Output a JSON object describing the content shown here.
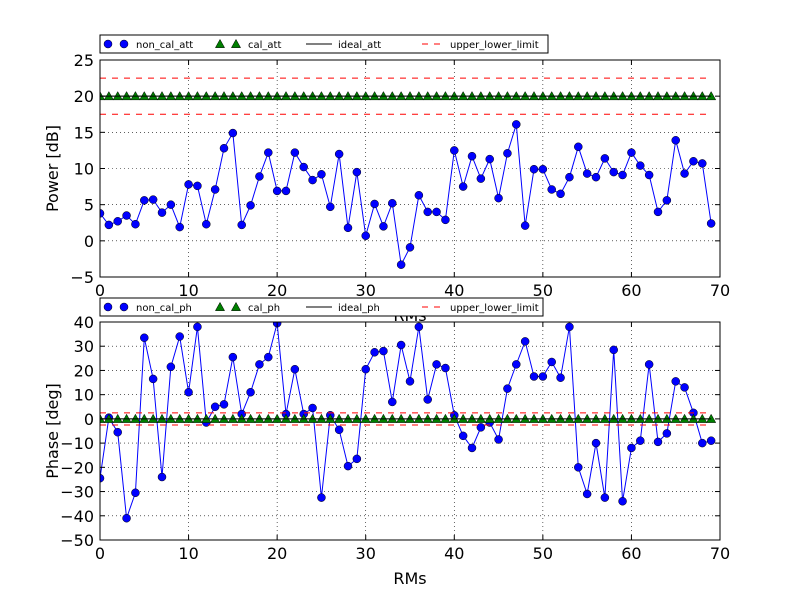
{
  "colors": {
    "non_cal": "#0000ff",
    "cal": "#007f00",
    "ideal": "#000000",
    "limit": "#ff0000"
  },
  "chart_data": [
    {
      "type": "line",
      "xlabel": "RMs",
      "ylabel": "Power [dB]",
      "xlim": [
        0,
        70
      ],
      "ylim": [
        -5,
        25
      ],
      "xticks": [
        0,
        10,
        20,
        30,
        40,
        50,
        60,
        70
      ],
      "yticks": [
        -5,
        0,
        5,
        10,
        15,
        20,
        25
      ],
      "grid": true,
      "legend_position": "above",
      "legend": [
        "non_cal_att",
        "cal_att",
        "ideal_att",
        "upper_lower_limit"
      ],
      "series": [
        {
          "name": "non_cal_att",
          "marker": "circle",
          "x": [
            0,
            1,
            2,
            3,
            4,
            5,
            6,
            7,
            8,
            9,
            10,
            11,
            12,
            13,
            14,
            15,
            16,
            17,
            18,
            19,
            20,
            21,
            22,
            23,
            24,
            25,
            26,
            27,
            28,
            29,
            30,
            31,
            32,
            33,
            34,
            35,
            36,
            37,
            38,
            39,
            40,
            41,
            42,
            43,
            44,
            45,
            46,
            47,
            48,
            49,
            50,
            51,
            52,
            53,
            54,
            55,
            56,
            57,
            58,
            59,
            60,
            61,
            62,
            63,
            64,
            65,
            66,
            67,
            68,
            69
          ],
          "values": [
            3.8,
            2.2,
            2.7,
            3.5,
            2.3,
            5.6,
            5.7,
            3.9,
            5.0,
            1.9,
            7.8,
            7.6,
            2.3,
            7.1,
            12.8,
            14.9,
            2.2,
            4.9,
            8.9,
            12.2,
            6.9,
            6.9,
            12.2,
            10.2,
            8.4,
            9.2,
            4.7,
            12.0,
            1.8,
            9.5,
            0.7,
            5.1,
            2.0,
            5.2,
            -3.3,
            -0.9,
            6.3,
            4.0,
            4.0,
            2.9,
            12.5,
            7.5,
            11.7,
            8.6,
            11.3,
            5.9,
            12.1,
            16.1,
            2.1,
            9.9,
            9.9,
            7.1,
            6.5,
            8.8,
            13.0,
            9.3,
            8.8,
            11.4,
            9.5,
            9.1,
            12.2,
            10.4,
            9.1,
            4.0,
            5.6,
            13.9,
            9.3,
            11.0,
            10.7,
            2.4
          ]
        },
        {
          "name": "cal_att",
          "marker": "triangle",
          "x": [
            0,
            1,
            2,
            3,
            4,
            5,
            6,
            7,
            8,
            9,
            10,
            11,
            12,
            13,
            14,
            15,
            16,
            17,
            18,
            19,
            20,
            21,
            22,
            23,
            24,
            25,
            26,
            27,
            28,
            29,
            30,
            31,
            32,
            33,
            34,
            35,
            36,
            37,
            38,
            39,
            40,
            41,
            42,
            43,
            44,
            45,
            46,
            47,
            48,
            49,
            50,
            51,
            52,
            53,
            54,
            55,
            56,
            57,
            58,
            59,
            60,
            61,
            62,
            63,
            64,
            65,
            66,
            67,
            68,
            69
          ],
          "values": [
            20,
            20,
            20,
            20,
            20,
            20,
            20,
            20,
            20,
            20,
            20,
            20,
            20,
            20,
            20,
            20,
            20,
            20,
            20,
            20,
            20,
            20,
            20,
            20,
            20,
            20,
            20,
            20,
            20,
            20,
            20,
            20,
            20,
            20,
            20,
            20,
            20,
            20,
            20,
            20,
            20,
            20,
            20,
            20,
            20,
            20,
            20,
            20,
            20,
            20,
            20,
            20,
            20,
            20,
            20,
            20,
            20,
            20,
            20,
            20,
            20,
            20,
            20,
            20,
            20,
            20,
            20,
            20,
            20,
            20
          ]
        },
        {
          "name": "ideal_att",
          "style": "solid",
          "x": [
            0,
            69
          ],
          "values": [
            20,
            20
          ]
        },
        {
          "name": "upper_lower_limit",
          "style": "dashed",
          "x": [
            0,
            69
          ],
          "values": [
            22.5,
            22.5
          ]
        },
        {
          "name": "upper_lower_limit",
          "style": "dashed",
          "x": [
            0,
            69
          ],
          "values": [
            17.5,
            17.5
          ]
        }
      ]
    },
    {
      "type": "line",
      "xlabel": "RMs",
      "ylabel": "Phase [deg]",
      "xlim": [
        0,
        70
      ],
      "ylim": [
        -50,
        40
      ],
      "xticks": [
        0,
        10,
        20,
        30,
        40,
        50,
        60,
        70
      ],
      "yticks": [
        -50,
        -40,
        -30,
        -20,
        -10,
        0,
        10,
        20,
        30,
        40
      ],
      "grid": true,
      "legend_position": "above",
      "legend": [
        "non_cal_ph",
        "cal_ph",
        "ideal_ph",
        "upper_lower_limit"
      ],
      "series": [
        {
          "name": "non_cal_ph",
          "marker": "circle",
          "x": [
            0,
            1,
            2,
            3,
            4,
            5,
            6,
            7,
            8,
            9,
            10,
            11,
            12,
            13,
            14,
            15,
            16,
            17,
            18,
            19,
            20,
            21,
            22,
            23,
            24,
            25,
            26,
            27,
            28,
            29,
            30,
            31,
            32,
            33,
            34,
            35,
            36,
            37,
            38,
            39,
            40,
            41,
            42,
            43,
            44,
            45,
            46,
            47,
            48,
            49,
            50,
            51,
            52,
            53,
            54,
            55,
            56,
            57,
            58,
            59,
            60,
            61,
            62,
            63,
            64,
            65,
            66,
            67,
            68,
            69
          ],
          "values": [
            -24.5,
            0.5,
            -5.5,
            -41,
            -30.5,
            33.5,
            16.5,
            -24,
            21.5,
            34,
            11,
            38,
            -1.5,
            5,
            6,
            25.5,
            2,
            11,
            22.5,
            25.5,
            39.5,
            2,
            20.5,
            2,
            4.5,
            -32.5,
            1.5,
            -4.5,
            -19.5,
            -16.5,
            20.5,
            27.5,
            28,
            7,
            30.5,
            15.5,
            38,
            8,
            22.5,
            21,
            1.5,
            -7,
            -12,
            -3.5,
            -1.5,
            -8.5,
            12.5,
            22.5,
            32,
            17.5,
            17.5,
            23.5,
            17,
            38,
            -20,
            -31,
            -10,
            -32.5,
            28.5,
            -34,
            -12,
            -9,
            22.5,
            -9.5,
            -6,
            15.5,
            13,
            2.5,
            -10,
            -9
          ]
        },
        {
          "name": "cal_ph",
          "marker": "triangle",
          "x": [
            0,
            1,
            2,
            3,
            4,
            5,
            6,
            7,
            8,
            9,
            10,
            11,
            12,
            13,
            14,
            15,
            16,
            17,
            18,
            19,
            20,
            21,
            22,
            23,
            24,
            25,
            26,
            27,
            28,
            29,
            30,
            31,
            32,
            33,
            34,
            35,
            36,
            37,
            38,
            39,
            40,
            41,
            42,
            43,
            44,
            45,
            46,
            47,
            48,
            49,
            50,
            51,
            52,
            53,
            54,
            55,
            56,
            57,
            58,
            59,
            60,
            61,
            62,
            63,
            64,
            65,
            66,
            67,
            68,
            69
          ],
          "values": [
            0,
            0,
            0,
            0,
            0,
            0,
            0,
            0,
            0,
            0,
            0,
            0,
            0,
            0,
            0,
            0,
            0,
            0,
            0,
            0,
            0,
            0,
            0,
            0,
            0,
            0,
            0,
            0,
            0,
            0,
            0,
            0,
            0,
            0,
            0,
            0,
            0,
            0,
            0,
            0,
            0,
            0,
            0,
            0,
            0,
            0,
            0,
            0,
            0,
            0,
            0,
            0,
            0,
            0,
            0,
            0,
            0,
            0,
            0,
            0,
            0,
            0,
            0,
            0,
            0,
            0,
            0,
            0,
            0,
            0
          ]
        },
        {
          "name": "ideal_ph",
          "style": "solid",
          "x": [
            0,
            69
          ],
          "values": [
            0,
            0
          ]
        },
        {
          "name": "upper_lower_limit",
          "style": "dashed",
          "x": [
            0,
            69
          ],
          "values": [
            2.5,
            2.5
          ]
        },
        {
          "name": "upper_lower_limit",
          "style": "dashed",
          "x": [
            0,
            69
          ],
          "values": [
            -2.5,
            -2.5
          ]
        }
      ]
    }
  ]
}
